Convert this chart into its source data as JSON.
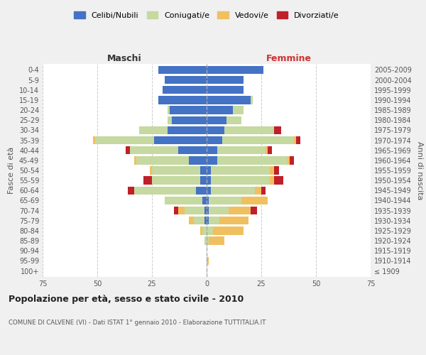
{
  "age_groups": [
    "100+",
    "95-99",
    "90-94",
    "85-89",
    "80-84",
    "75-79",
    "70-74",
    "65-69",
    "60-64",
    "55-59",
    "50-54",
    "45-49",
    "40-44",
    "35-39",
    "30-34",
    "25-29",
    "20-24",
    "15-19",
    "10-14",
    "5-9",
    "0-4"
  ],
  "birth_years": [
    "≤ 1909",
    "1910-1914",
    "1915-1919",
    "1920-1924",
    "1925-1929",
    "1930-1934",
    "1935-1939",
    "1940-1944",
    "1945-1949",
    "1950-1954",
    "1955-1959",
    "1960-1964",
    "1965-1969",
    "1970-1974",
    "1975-1979",
    "1980-1984",
    "1985-1989",
    "1990-1994",
    "1995-1999",
    "2000-2004",
    "2005-2009"
  ],
  "maschi": {
    "celibi": [
      0,
      0,
      0,
      0,
      0,
      1,
      1,
      2,
      5,
      3,
      3,
      8,
      13,
      24,
      18,
      16,
      17,
      22,
      20,
      19,
      22
    ],
    "coniugati": [
      0,
      0,
      0,
      1,
      2,
      5,
      9,
      17,
      28,
      22,
      22,
      24,
      22,
      27,
      13,
      2,
      1,
      0,
      0,
      0,
      0
    ],
    "vedovi": [
      0,
      0,
      0,
      0,
      1,
      2,
      3,
      0,
      0,
      0,
      1,
      1,
      0,
      1,
      0,
      0,
      0,
      0,
      0,
      0,
      0
    ],
    "divorziati": [
      0,
      0,
      0,
      0,
      0,
      0,
      2,
      0,
      3,
      4,
      0,
      0,
      2,
      0,
      0,
      0,
      0,
      0,
      0,
      0,
      0
    ]
  },
  "femmine": {
    "nubili": [
      0,
      0,
      0,
      0,
      0,
      1,
      1,
      1,
      2,
      2,
      2,
      5,
      5,
      7,
      8,
      9,
      12,
      20,
      17,
      17,
      26
    ],
    "coniugate": [
      0,
      0,
      0,
      1,
      3,
      5,
      9,
      15,
      20,
      27,
      27,
      32,
      22,
      33,
      23,
      7,
      5,
      1,
      0,
      0,
      0
    ],
    "vedove": [
      0,
      1,
      0,
      7,
      14,
      13,
      10,
      12,
      3,
      2,
      2,
      1,
      1,
      1,
      0,
      0,
      0,
      0,
      0,
      0,
      0
    ],
    "divorziate": [
      0,
      0,
      0,
      0,
      0,
      0,
      3,
      0,
      2,
      4,
      2,
      2,
      2,
      2,
      3,
      0,
      0,
      0,
      0,
      0,
      0
    ]
  },
  "colors": {
    "celibi_nubili": "#4472c4",
    "coniugati_e": "#c5d9a0",
    "vedovi_e": "#f0c060",
    "divorziati_e": "#c0202a"
  },
  "xlim": 75,
  "title": "Popolazione per età, sesso e stato civile - 2010",
  "subtitle": "COMUNE DI CALVENE (VI) - Dati ISTAT 1° gennaio 2010 - Elaborazione TUTTITALIA.IT",
  "ylabel_left": "Fasce di età",
  "ylabel_right": "Anni di nascita",
  "xlabel_maschi": "Maschi",
  "xlabel_femmine": "Femmine",
  "bg_color": "#f0f0f0",
  "plot_bg": "#ffffff"
}
